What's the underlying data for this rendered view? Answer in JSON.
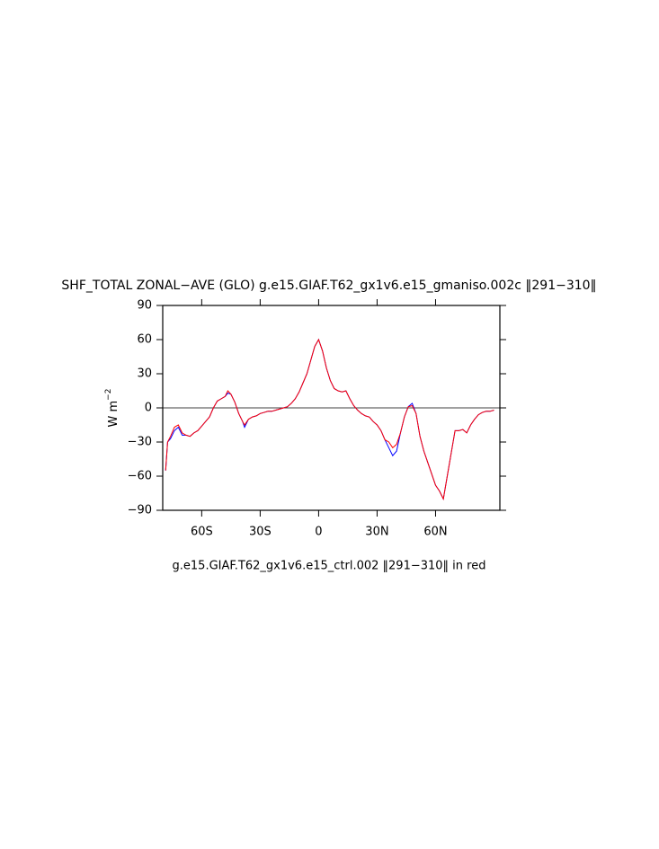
{
  "chart_data": {
    "type": "line",
    "title": "SHF_TOTAL ZONAL−AVE (GLO) g.e15.GIAF.T62_gx1v6.e15_gmaniso.002c ‖291−310‖",
    "subtitle": "g.e15.GIAF.T62_gx1v6.e15_ctrl.002 ‖291−310‖ in red",
    "ylabel": "W m",
    "ylabel_superscript": "−2",
    "xlim": [
      -80,
      93
    ],
    "ylim": [
      -90,
      90
    ],
    "xticks": [
      {
        "value": -60,
        "label": "60S"
      },
      {
        "value": -30,
        "label": "30S"
      },
      0,
      {
        "value": 30,
        "label": "30N"
      },
      {
        "value": 60,
        "label": "60N"
      }
    ],
    "yticks": [
      {
        "value": -90,
        "label": "−90"
      },
      {
        "value": -60,
        "label": "−60"
      },
      {
        "value": -30,
        "label": "−30"
      },
      0,
      30,
      60,
      90
    ],
    "reference_line": 0,
    "x": [
      -78.5,
      -77.5,
      -76,
      -74,
      -72,
      -70,
      -68,
      -66,
      -64,
      -62,
      -60,
      -58,
      -56,
      -54,
      -52,
      -50,
      -48,
      -46.6,
      -45,
      -43,
      -41,
      -39,
      -38,
      -36,
      -34,
      -32,
      -30,
      -28,
      -26,
      -24,
      -22,
      -20,
      -18,
      -16,
      -14,
      -12,
      -10,
      -8,
      -6,
      -4,
      -2,
      0,
      2,
      4,
      6,
      8,
      10,
      12,
      14,
      16,
      18,
      20,
      22,
      24,
      26,
      28,
      30,
      32,
      34,
      36,
      38,
      40,
      42,
      44,
      46,
      48,
      50,
      52,
      54,
      56,
      58,
      60,
      62,
      64,
      66,
      68,
      70,
      72,
      74,
      76,
      78,
      80,
      82,
      84,
      86,
      88,
      90
    ],
    "series": [
      {
        "color": "#0000ff",
        "values": [
          -55,
          -30,
          -27,
          -20,
          -17,
          -24,
          -24,
          -25,
          -22,
          -20,
          -16,
          -12,
          -8,
          0,
          6,
          8,
          10,
          13,
          12,
          5,
          -5,
          -12,
          -17,
          -10,
          -8,
          -7,
          -5,
          -4,
          -3,
          -3,
          -2,
          -1,
          0,
          1,
          4,
          8,
          14,
          22,
          30,
          42,
          54,
          60,
          50,
          35,
          24,
          17,
          15,
          14,
          15,
          8,
          2,
          -2,
          -5,
          -7,
          -8,
          -12,
          -15,
          -20,
          -28,
          -35,
          -42,
          -38,
          -22,
          -8,
          1,
          4,
          -5,
          -25,
          -38,
          -48,
          -58,
          -68,
          -73,
          -80,
          -60,
          -40,
          -20,
          -20,
          -19,
          -22,
          -15,
          -10,
          -6,
          -4,
          -3,
          -3,
          -2
        ]
      },
      {
        "color": "#ff0000",
        "values": [
          -55,
          -30,
          -25,
          -17,
          -15,
          -22,
          -24,
          -25,
          -22,
          -20,
          -16,
          -12,
          -8,
          0,
          6,
          8,
          10,
          15,
          12,
          5,
          -5,
          -12,
          -15,
          -10,
          -8,
          -7,
          -5,
          -4,
          -3,
          -3,
          -2,
          -1,
          0,
          1,
          4,
          8,
          14,
          22,
          30,
          42,
          54,
          60,
          50,
          35,
          24,
          17,
          15,
          14,
          15,
          8,
          2,
          -2,
          -5,
          -7,
          -8,
          -12,
          -15,
          -20,
          -28,
          -30,
          -35,
          -32,
          -22,
          -8,
          1,
          2,
          -5,
          -25,
          -38,
          -48,
          -58,
          -68,
          -73,
          -80,
          -60,
          -40,
          -20,
          -20,
          -19,
          -22,
          -15,
          -10,
          -6,
          -4,
          -3,
          -3,
          -2
        ]
      }
    ]
  }
}
